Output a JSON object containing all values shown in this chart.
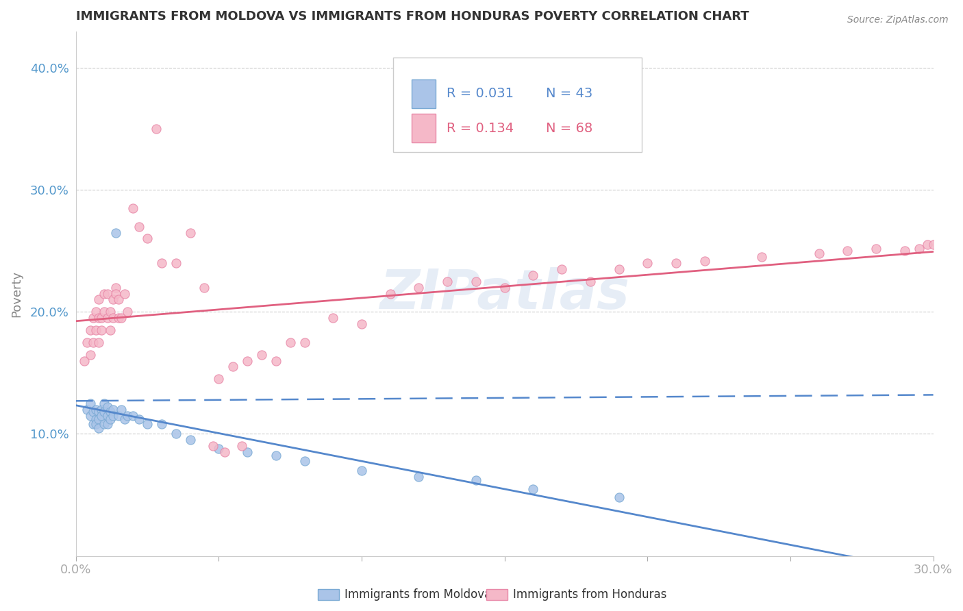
{
  "title": "IMMIGRANTS FROM MOLDOVA VS IMMIGRANTS FROM HONDURAS POVERTY CORRELATION CHART",
  "source": "Source: ZipAtlas.com",
  "ylabel": "Poverty",
  "xlim": [
    0.0,
    0.3
  ],
  "ylim": [
    0.0,
    0.43
  ],
  "legend_r1": "R = 0.031",
  "legend_n1": "N = 43",
  "legend_r2": "R = 0.134",
  "legend_n2": "N = 68",
  "legend_label1": "Immigrants from Moldova",
  "legend_label2": "Immigrants from Honduras",
  "color_moldova_fill": "#aac4e8",
  "color_moldova_edge": "#7aaad4",
  "color_honduras_fill": "#f5b8c8",
  "color_honduras_edge": "#e888a8",
  "color_trendline_moldova": "#5588cc",
  "color_trendline_honduras": "#e06080",
  "color_axis_labels": "#5599cc",
  "color_title": "#333333",
  "watermark_text": "ZIPatlas",
  "moldova_x": [
    0.004,
    0.005,
    0.005,
    0.006,
    0.006,
    0.007,
    0.007,
    0.007,
    0.008,
    0.008,
    0.008,
    0.009,
    0.009,
    0.01,
    0.01,
    0.01,
    0.011,
    0.011,
    0.011,
    0.012,
    0.012,
    0.013,
    0.013,
    0.014,
    0.015,
    0.016,
    0.017,
    0.018,
    0.02,
    0.022,
    0.025,
    0.03,
    0.035,
    0.04,
    0.05,
    0.06,
    0.07,
    0.08,
    0.1,
    0.12,
    0.14,
    0.16,
    0.19
  ],
  "moldova_y": [
    0.12,
    0.125,
    0.115,
    0.118,
    0.108,
    0.12,
    0.112,
    0.108,
    0.118,
    0.112,
    0.105,
    0.12,
    0.115,
    0.125,
    0.118,
    0.108,
    0.122,
    0.115,
    0.108,
    0.118,
    0.112,
    0.12,
    0.115,
    0.265,
    0.115,
    0.12,
    0.112,
    0.115,
    0.115,
    0.112,
    0.108,
    0.108,
    0.1,
    0.095,
    0.088,
    0.085,
    0.082,
    0.078,
    0.07,
    0.065,
    0.062,
    0.055,
    0.048
  ],
  "honduras_x": [
    0.003,
    0.004,
    0.005,
    0.005,
    0.006,
    0.006,
    0.007,
    0.007,
    0.008,
    0.008,
    0.008,
    0.009,
    0.009,
    0.01,
    0.01,
    0.011,
    0.011,
    0.012,
    0.012,
    0.013,
    0.013,
    0.014,
    0.014,
    0.015,
    0.015,
    0.016,
    0.017,
    0.018,
    0.02,
    0.022,
    0.025,
    0.028,
    0.03,
    0.035,
    0.04,
    0.045,
    0.05,
    0.055,
    0.06,
    0.065,
    0.07,
    0.075,
    0.08,
    0.09,
    0.1,
    0.11,
    0.12,
    0.13,
    0.14,
    0.15,
    0.16,
    0.17,
    0.18,
    0.19,
    0.2,
    0.21,
    0.22,
    0.24,
    0.26,
    0.27,
    0.28,
    0.29,
    0.295,
    0.298,
    0.3,
    0.048,
    0.052,
    0.058
  ],
  "honduras_y": [
    0.16,
    0.175,
    0.165,
    0.185,
    0.175,
    0.195,
    0.185,
    0.2,
    0.195,
    0.21,
    0.175,
    0.195,
    0.185,
    0.2,
    0.215,
    0.195,
    0.215,
    0.2,
    0.185,
    0.21,
    0.195,
    0.22,
    0.215,
    0.195,
    0.21,
    0.195,
    0.215,
    0.2,
    0.285,
    0.27,
    0.26,
    0.35,
    0.24,
    0.24,
    0.265,
    0.22,
    0.145,
    0.155,
    0.16,
    0.165,
    0.16,
    0.175,
    0.175,
    0.195,
    0.19,
    0.215,
    0.22,
    0.225,
    0.225,
    0.22,
    0.23,
    0.235,
    0.225,
    0.235,
    0.24,
    0.24,
    0.242,
    0.245,
    0.248,
    0.25,
    0.252,
    0.25,
    0.252,
    0.255,
    0.255,
    0.09,
    0.085,
    0.09
  ]
}
